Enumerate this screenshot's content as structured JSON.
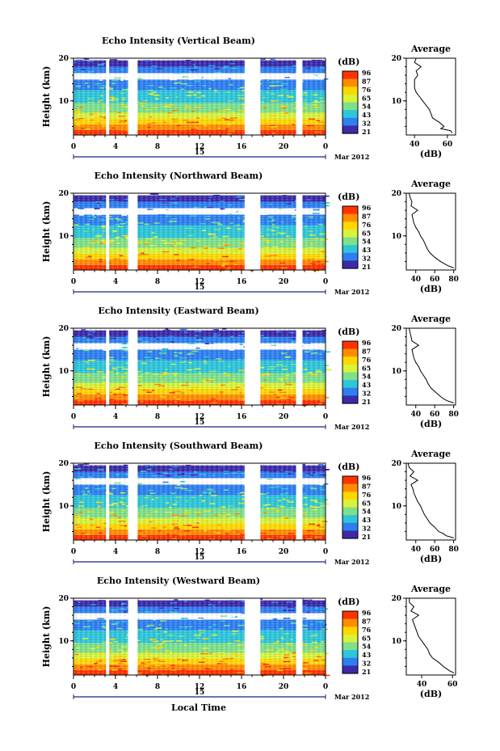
{
  "chart_data": {
    "type": "heatmap",
    "date_label": "Mar 2012",
    "xlabel": "Local Time",
    "x_ticks": [
      "0",
      "4",
      "8",
      "12",
      "16",
      "20",
      "0"
    ],
    "day_label": "15",
    "xlim": [
      0,
      24
    ],
    "ylabel": "Height (km)",
    "y_ticks": [
      "20",
      "10"
    ],
    "ylim": [
      2,
      20
    ],
    "colorbar": {
      "unit": "(dB)",
      "labels": [
        "96",
        "87",
        "76",
        "65",
        "54",
        "43",
        "32",
        "21"
      ],
      "colors": [
        "#ff3300",
        "#ff8c00",
        "#ffd700",
        "#d9f23a",
        "#7ee08a",
        "#2ec5d8",
        "#2e7ff0",
        "#3d2aa8"
      ]
    },
    "data_gaps_hours": [
      [
        3.1,
        3.4
      ],
      [
        5.2,
        6.1
      ],
      [
        16.3,
        17.8
      ],
      [
        21.2,
        21.8
      ]
    ],
    "average_panel": {
      "title": "Average",
      "xlabel": "(dB)"
    },
    "panels": [
      {
        "title": "Echo Intensity (Vertical Beam)",
        "avg_x_ticks": [
          "40",
          "60"
        ],
        "avg_xlim": [
          35,
          65
        ],
        "profile": {
          "height": [
            2.5,
            3,
            3.5,
            4,
            5,
            6,
            7,
            8,
            9,
            10,
            11,
            12,
            13,
            14,
            15,
            16,
            17,
            18,
            19,
            20
          ],
          "db": [
            63,
            62,
            56,
            58,
            55,
            51,
            50,
            49,
            47,
            45,
            43,
            41,
            40,
            40,
            40,
            42,
            41,
            44,
            40,
            41
          ]
        }
      },
      {
        "title": "Echo Intensity (Northward Beam)",
        "avg_x_ticks": [
          "40",
          "60",
          "80"
        ],
        "avg_xlim": [
          30,
          82
        ],
        "profile": {
          "height": [
            2.5,
            3,
            3.5,
            4,
            5,
            6,
            7,
            8,
            9,
            10,
            11,
            12,
            13,
            14,
            15,
            16,
            17,
            18,
            19,
            20
          ],
          "db": [
            80,
            74,
            70,
            66,
            60,
            55,
            52,
            50,
            48,
            45,
            43,
            40,
            38,
            37,
            36,
            42,
            35,
            36,
            34,
            33
          ]
        }
      },
      {
        "title": "Echo Intensity (Eastward Beam)",
        "avg_x_ticks": [
          "40",
          "60",
          "80"
        ],
        "avg_xlim": [
          30,
          82
        ],
        "profile": {
          "height": [
            2.5,
            3,
            3.5,
            4,
            5,
            6,
            7,
            8,
            9,
            10,
            11,
            12,
            13,
            14,
            15,
            16,
            17,
            18,
            19,
            20
          ],
          "db": [
            80,
            73,
            69,
            66,
            61,
            56,
            53,
            51,
            48,
            45,
            43,
            40,
            38,
            37,
            36,
            43,
            36,
            35,
            34,
            33
          ]
        }
      },
      {
        "title": "Echo Intensity (Southward Beam)",
        "avg_x_ticks": [
          "40",
          "60",
          "80"
        ],
        "avg_xlim": [
          30,
          82
        ],
        "profile": {
          "height": [
            2.5,
            3,
            3.5,
            4,
            5,
            6,
            7,
            8,
            9,
            10,
            11,
            12,
            13,
            14,
            15,
            16,
            17,
            18,
            19,
            20
          ],
          "db": [
            80,
            72,
            69,
            64,
            60,
            55,
            52,
            49,
            47,
            45,
            42,
            40,
            38,
            37,
            35,
            42,
            34,
            38,
            33,
            32
          ]
        }
      },
      {
        "title": "Echo Intensity (Westward Beam)",
        "avg_x_ticks": [
          "40",
          "60"
        ],
        "avg_xlim": [
          30,
          62
        ],
        "profile": {
          "height": [
            2.5,
            3,
            3.5,
            4,
            5,
            6,
            7,
            8,
            9,
            10,
            11,
            12,
            13,
            14,
            15,
            16,
            17,
            18,
            19,
            20
          ],
          "db": [
            61,
            58,
            56,
            54,
            51,
            47,
            45,
            44,
            42,
            40,
            38,
            37,
            36,
            35,
            34,
            38,
            33,
            35,
            32,
            32
          ]
        }
      }
    ]
  }
}
